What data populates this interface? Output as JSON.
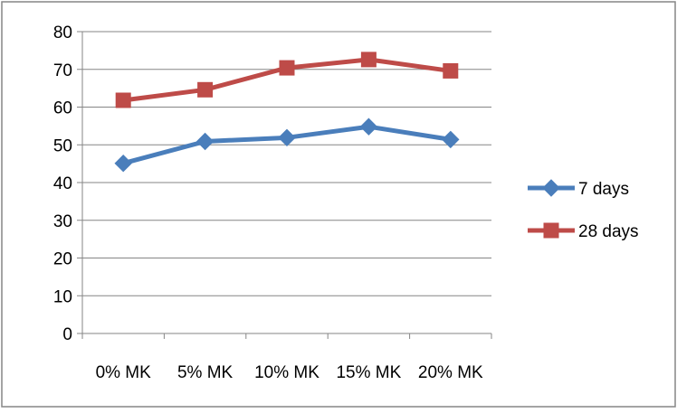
{
  "chart_data": {
    "type": "line",
    "title": "",
    "xlabel": "",
    "ylabel": "",
    "categories": [
      "0% MK",
      "5% MK",
      "10% MK",
      "15% MK",
      "20% MK"
    ],
    "ylim": [
      0,
      80
    ],
    "yticks": [
      0,
      10,
      20,
      30,
      40,
      50,
      60,
      70,
      80
    ],
    "grid": true,
    "legend_position": "right",
    "series": [
      {
        "name": "7 days",
        "values": [
          45.1,
          50.9,
          51.9,
          54.8,
          51.4
        ],
        "color": "#4a7ebb",
        "marker": "diamond"
      },
      {
        "name": "28 days",
        "values": [
          61.8,
          64.6,
          70.4,
          72.6,
          69.6
        ],
        "color": "#be4b48",
        "marker": "square"
      }
    ]
  }
}
